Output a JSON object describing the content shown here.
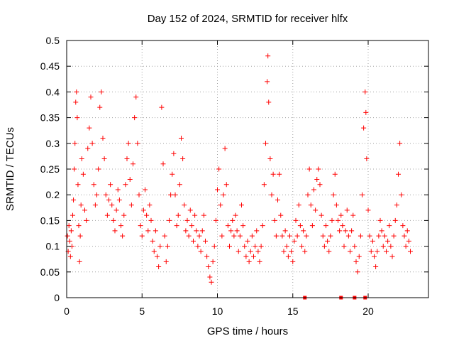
{
  "chart_data": {
    "type": "scatter",
    "title": "Day 152 of 2024, SRMTID for receiver hlfx",
    "xlabel": "GPS time / hours",
    "ylabel": "SRMTID / TECUs",
    "xlim": [
      0,
      24
    ],
    "ylim": [
      0,
      0.5
    ],
    "x_ticks": [
      0,
      5,
      10,
      15,
      20
    ],
    "x_tick_labels": [
      "0",
      "5",
      "10",
      "15",
      "20"
    ],
    "y_ticks": [
      0,
      0.05,
      0.1,
      0.15,
      0.2,
      0.25,
      0.3,
      0.35,
      0.4,
      0.45,
      0.5
    ],
    "y_tick_labels": [
      "0",
      "0.05",
      "0.1",
      "0.15",
      "0.2",
      "0.25",
      "0.3",
      "0.35",
      "0.4",
      "0.45",
      "0.5"
    ],
    "grid": true,
    "legend": "none",
    "marker_color": "#ff0000",
    "series": [
      {
        "marker": "plus",
        "points": [
          [
            0.05,
            0.12
          ],
          [
            0.1,
            0.09
          ],
          [
            0.15,
            0.14
          ],
          [
            0.2,
            0.11
          ],
          [
            0.25,
            0.08
          ],
          [
            0.3,
            0.13
          ],
          [
            0.35,
            0.1
          ],
          [
            0.4,
            0.16
          ],
          [
            0.45,
            0.19
          ],
          [
            0.5,
            0.25
          ],
          [
            0.55,
            0.3
          ],
          [
            0.6,
            0.38
          ],
          [
            0.65,
            0.4
          ],
          [
            0.7,
            0.35
          ],
          [
            0.75,
            0.22
          ],
          [
            0.8,
            0.14
          ],
          [
            0.85,
            0.07
          ],
          [
            0.9,
            0.12
          ],
          [
            0.95,
            0.18
          ],
          [
            1.0,
            0.27
          ],
          [
            1.1,
            0.24
          ],
          [
            1.2,
            0.17
          ],
          [
            1.3,
            0.15
          ],
          [
            1.4,
            0.29
          ],
          [
            1.5,
            0.33
          ],
          [
            1.6,
            0.39
          ],
          [
            1.7,
            0.3
          ],
          [
            1.8,
            0.22
          ],
          [
            1.9,
            0.18
          ],
          [
            2.0,
            0.2
          ],
          [
            2.1,
            0.25
          ],
          [
            2.2,
            0.37
          ],
          [
            2.3,
            0.4
          ],
          [
            2.4,
            0.31
          ],
          [
            2.5,
            0.27
          ],
          [
            2.6,
            0.2
          ],
          [
            2.7,
            0.16
          ],
          [
            2.8,
            0.19
          ],
          [
            2.9,
            0.22
          ],
          [
            3.0,
            0.18
          ],
          [
            3.1,
            0.15
          ],
          [
            3.2,
            0.13
          ],
          [
            3.3,
            0.17
          ],
          [
            3.4,
            0.21
          ],
          [
            3.5,
            0.19
          ],
          [
            3.6,
            0.14
          ],
          [
            3.7,
            0.12
          ],
          [
            3.8,
            0.16
          ],
          [
            3.9,
            0.22
          ],
          [
            4.0,
            0.27
          ],
          [
            4.1,
            0.3
          ],
          [
            4.2,
            0.23
          ],
          [
            4.3,
            0.18
          ],
          [
            4.4,
            0.26
          ],
          [
            4.5,
            0.35
          ],
          [
            4.6,
            0.39
          ],
          [
            4.7,
            0.3
          ],
          [
            4.8,
            0.2
          ],
          [
            4.9,
            0.14
          ],
          [
            5.0,
            0.12
          ],
          [
            5.1,
            0.17
          ],
          [
            5.2,
            0.21
          ],
          [
            5.3,
            0.16
          ],
          [
            5.4,
            0.13
          ],
          [
            5.5,
            0.18
          ],
          [
            5.6,
            0.15
          ],
          [
            5.7,
            0.11
          ],
          [
            5.8,
            0.09
          ],
          [
            5.9,
            0.13
          ],
          [
            6.0,
            0.08
          ],
          [
            6.1,
            0.06
          ],
          [
            6.2,
            0.1
          ],
          [
            6.3,
            0.37
          ],
          [
            6.4,
            0.26
          ],
          [
            6.5,
            0.12
          ],
          [
            6.6,
            0.07
          ],
          [
            6.7,
            0.1
          ],
          [
            6.8,
            0.15
          ],
          [
            6.9,
            0.2
          ],
          [
            7.0,
            0.24
          ],
          [
            7.1,
            0.28
          ],
          [
            7.2,
            0.2
          ],
          [
            7.3,
            0.14
          ],
          [
            7.4,
            0.16
          ],
          [
            7.5,
            0.22
          ],
          [
            7.6,
            0.31
          ],
          [
            7.7,
            0.27
          ],
          [
            7.8,
            0.18
          ],
          [
            7.9,
            0.13
          ],
          [
            8.0,
            0.15
          ],
          [
            8.1,
            0.12
          ],
          [
            8.2,
            0.17
          ],
          [
            8.3,
            0.14
          ],
          [
            8.4,
            0.11
          ],
          [
            8.5,
            0.16
          ],
          [
            8.6,
            0.13
          ],
          [
            8.7,
            0.1
          ],
          [
            8.8,
            0.12
          ],
          [
            8.9,
            0.09
          ],
          [
            9.0,
            0.13
          ],
          [
            9.1,
            0.16
          ],
          [
            9.2,
            0.11
          ],
          [
            9.3,
            0.08
          ],
          [
            9.4,
            0.06
          ],
          [
            9.5,
            0.04
          ],
          [
            9.6,
            0.03
          ],
          [
            9.7,
            0.07
          ],
          [
            9.8,
            0.1
          ],
          [
            9.9,
            0.15
          ],
          [
            10.0,
            0.21
          ],
          [
            10.1,
            0.25
          ],
          [
            10.2,
            0.18
          ],
          [
            10.3,
            0.12
          ],
          [
            10.4,
            0.2
          ],
          [
            10.5,
            0.29
          ],
          [
            10.6,
            0.22
          ],
          [
            10.7,
            0.14
          ],
          [
            10.8,
            0.1
          ],
          [
            10.9,
            0.13
          ],
          [
            11.0,
            0.15
          ],
          [
            11.1,
            0.12
          ],
          [
            11.2,
            0.16
          ],
          [
            11.3,
            0.13
          ],
          [
            11.4,
            0.09
          ],
          [
            11.5,
            0.12
          ],
          [
            11.6,
            0.18
          ],
          [
            11.7,
            0.14
          ],
          [
            11.8,
            0.1
          ],
          [
            11.9,
            0.08
          ],
          [
            12.0,
            0.11
          ],
          [
            12.1,
            0.07
          ],
          [
            12.2,
            0.09
          ],
          [
            12.3,
            0.12
          ],
          [
            12.4,
            0.08
          ],
          [
            12.5,
            0.1
          ],
          [
            12.6,
            0.13
          ],
          [
            12.7,
            0.09
          ],
          [
            12.8,
            0.07
          ],
          [
            12.9,
            0.1
          ],
          [
            13.0,
            0.14
          ],
          [
            13.1,
            0.22
          ],
          [
            13.2,
            0.3
          ],
          [
            13.3,
            0.42
          ],
          [
            13.35,
            0.47
          ],
          [
            13.4,
            0.38
          ],
          [
            13.5,
            0.27
          ],
          [
            13.6,
            0.2
          ],
          [
            13.7,
            0.24
          ],
          [
            13.8,
            0.15
          ],
          [
            13.9,
            0.12
          ],
          [
            14.0,
            0.19
          ],
          [
            14.1,
            0.24
          ],
          [
            14.2,
            0.16
          ],
          [
            14.3,
            0.12
          ],
          [
            14.4,
            0.09
          ],
          [
            14.5,
            0.13
          ],
          [
            14.6,
            0.1
          ],
          [
            14.7,
            0.08
          ],
          [
            14.8,
            0.12
          ],
          [
            14.9,
            0.09
          ],
          [
            15.0,
            0.07
          ],
          [
            15.1,
            0.11
          ],
          [
            15.2,
            0.15
          ],
          [
            15.3,
            0.12
          ],
          [
            15.4,
            0.18
          ],
          [
            15.5,
            0.14
          ],
          [
            15.6,
            0.1
          ],
          [
            15.7,
            0.13
          ],
          [
            15.8,
            0.09
          ],
          [
            15.9,
            0.12
          ],
          [
            16.0,
            0.2
          ],
          [
            16.1,
            0.25
          ],
          [
            16.2,
            0.18
          ],
          [
            16.3,
            0.14
          ],
          [
            16.4,
            0.21
          ],
          [
            16.5,
            0.17
          ],
          [
            16.6,
            0.23
          ],
          [
            16.7,
            0.25
          ],
          [
            16.8,
            0.22
          ],
          [
            16.9,
            0.16
          ],
          [
            17.0,
            0.12
          ],
          [
            17.1,
            0.1
          ],
          [
            17.2,
            0.14
          ],
          [
            17.3,
            0.11
          ],
          [
            17.4,
            0.09
          ],
          [
            17.5,
            0.12
          ],
          [
            17.6,
            0.15
          ],
          [
            17.7,
            0.2
          ],
          [
            17.8,
            0.24
          ],
          [
            17.9,
            0.18
          ],
          [
            18.0,
            0.15
          ],
          [
            18.1,
            0.13
          ],
          [
            18.2,
            0.16
          ],
          [
            18.3,
            0.14
          ],
          [
            18.4,
            0.1
          ],
          [
            18.5,
            0.13
          ],
          [
            18.6,
            0.17
          ],
          [
            18.7,
            0.12
          ],
          [
            18.8,
            0.09
          ],
          [
            18.9,
            0.13
          ],
          [
            19.0,
            0.16
          ],
          [
            19.1,
            0.1
          ],
          [
            19.2,
            0.07
          ],
          [
            19.3,
            0.05
          ],
          [
            19.4,
            0.08
          ],
          [
            19.5,
            0.12
          ],
          [
            19.6,
            0.2
          ],
          [
            19.7,
            0.33
          ],
          [
            19.8,
            0.4
          ],
          [
            19.85,
            0.36
          ],
          [
            19.9,
            0.27
          ],
          [
            20.0,
            0.17
          ],
          [
            20.1,
            0.12
          ],
          [
            20.2,
            0.09
          ],
          [
            20.3,
            0.11
          ],
          [
            20.4,
            0.08
          ],
          [
            20.5,
            0.06
          ],
          [
            20.6,
            0.09
          ],
          [
            20.7,
            0.12
          ],
          [
            20.8,
            0.15
          ],
          [
            20.9,
            0.13
          ],
          [
            21.0,
            0.1
          ],
          [
            21.1,
            0.12
          ],
          [
            21.2,
            0.09
          ],
          [
            21.3,
            0.11
          ],
          [
            21.4,
            0.14
          ],
          [
            21.5,
            0.1
          ],
          [
            21.6,
            0.08
          ],
          [
            21.7,
            0.12
          ],
          [
            21.8,
            0.15
          ],
          [
            21.9,
            0.18
          ],
          [
            22.0,
            0.24
          ],
          [
            22.1,
            0.3
          ],
          [
            22.2,
            0.2
          ],
          [
            22.3,
            0.14
          ],
          [
            22.4,
            0.12
          ],
          [
            22.5,
            0.1
          ],
          [
            22.6,
            0.13
          ],
          [
            22.7,
            0.11
          ],
          [
            22.8,
            0.09
          ]
        ]
      },
      {
        "marker": "square",
        "points": [
          [
            15.8,
            0
          ],
          [
            18.2,
            0
          ],
          [
            19.1,
            0
          ],
          [
            19.8,
            0
          ]
        ]
      }
    ]
  }
}
